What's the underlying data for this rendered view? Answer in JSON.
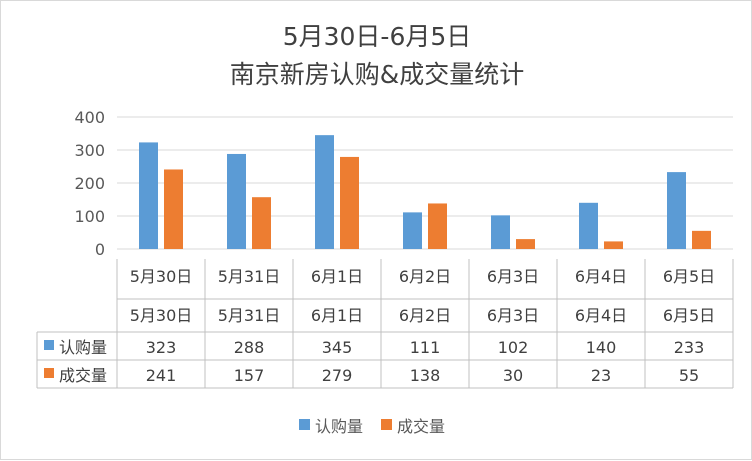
{
  "chart_data": {
    "type": "bar",
    "title": "5月30日-6月5日",
    "subtitle": "南京新房认购&成交量统计",
    "categories": [
      "5月30日",
      "5月31日",
      "6月1日",
      "6月2日",
      "6月3日",
      "6月4日",
      "6月5日"
    ],
    "series": [
      {
        "name": "认购量",
        "values": [
          323,
          288,
          345,
          111,
          102,
          140,
          233
        ],
        "color": "#5b9bd5"
      },
      {
        "name": "成交量",
        "values": [
          241,
          157,
          279,
          138,
          30,
          23,
          55
        ],
        "color": "#ed7d31"
      }
    ],
    "ylim": [
      0,
      400
    ],
    "yticks": [
      0,
      100,
      200,
      300,
      400
    ],
    "grid": true,
    "data_table": true,
    "legend_position": "bottom"
  }
}
